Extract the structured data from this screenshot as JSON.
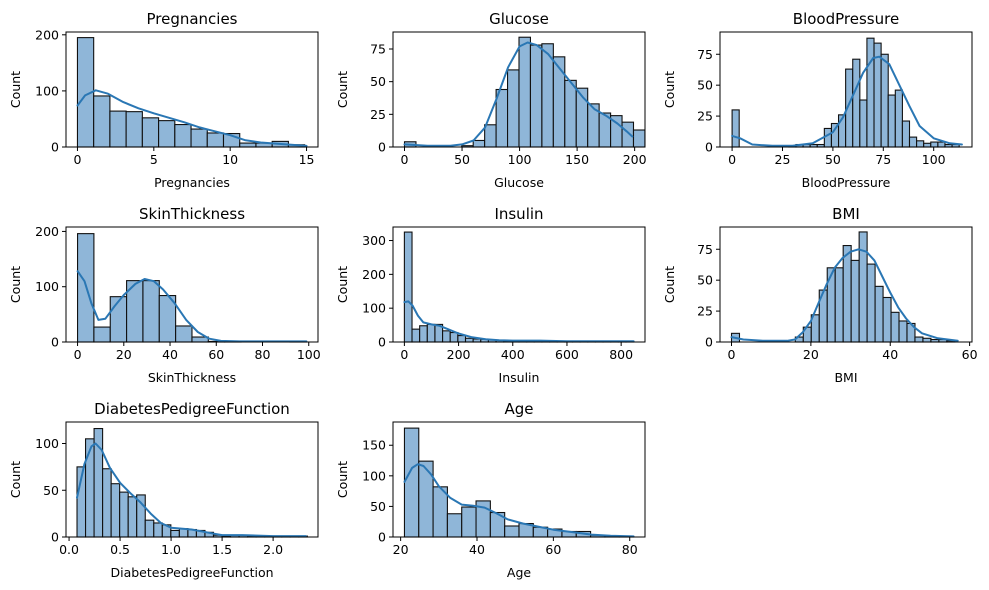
{
  "figure": {
    "layout": "3x3 grid of histograms with KDE",
    "bar_color": "#8fb6d8",
    "bar_edge": "#111111",
    "kde_color": "#2a77b4"
  },
  "chart_data": [
    {
      "type": "bar",
      "subtype": "histogram+kde",
      "title": "Pregnancies",
      "xlabel": "Pregnancies",
      "ylabel": "Count",
      "xlim": [
        -0.75,
        15.75
      ],
      "ylim": [
        0,
        205
      ],
      "xticks": [
        0,
        5,
        10,
        15
      ],
      "yticks": [
        0,
        100,
        200
      ],
      "bin_start": 0,
      "bin_width": 1.0625,
      "counts": [
        195,
        91,
        64,
        63,
        52,
        47,
        40,
        32,
        25,
        24,
        7,
        7,
        10,
        4
      ],
      "kde": [
        [
          0,
          74
        ],
        [
          0.5,
          92
        ],
        [
          1.2,
          101
        ],
        [
          2,
          95
        ],
        [
          3,
          80
        ],
        [
          4,
          69
        ],
        [
          5,
          60
        ],
        [
          6,
          52
        ],
        [
          7,
          44
        ],
        [
          8,
          35
        ],
        [
          9,
          28
        ],
        [
          10,
          21
        ],
        [
          11,
          12
        ],
        [
          12,
          8
        ],
        [
          13,
          6
        ],
        [
          14,
          4
        ],
        [
          15,
          2
        ]
      ]
    },
    {
      "type": "bar",
      "subtype": "histogram+kde",
      "title": "Glucose",
      "xlabel": "Glucose",
      "ylabel": "Count",
      "xlim": [
        -10,
        209
      ],
      "ylim": [
        0,
        88
      ],
      "xticks": [
        0,
        50,
        100,
        150,
        200
      ],
      "yticks": [
        0,
        25,
        50,
        75
      ],
      "bin_start": 0,
      "bin_width": 9.95,
      "counts": [
        4,
        0,
        0,
        0,
        0,
        1,
        5,
        17,
        44,
        59,
        84,
        78,
        79,
        69,
        51,
        45,
        33,
        26,
        24,
        19,
        13
      ],
      "kde": [
        [
          0,
          2
        ],
        [
          20,
          1
        ],
        [
          40,
          1
        ],
        [
          50,
          2
        ],
        [
          60,
          5
        ],
        [
          70,
          15
        ],
        [
          80,
          37
        ],
        [
          90,
          61
        ],
        [
          100,
          77
        ],
        [
          107,
          80
        ],
        [
          115,
          78
        ],
        [
          125,
          71
        ],
        [
          135,
          60
        ],
        [
          145,
          49
        ],
        [
          155,
          38
        ],
        [
          165,
          29
        ],
        [
          175,
          24
        ],
        [
          185,
          18
        ],
        [
          193,
          12
        ],
        [
          198,
          8
        ]
      ]
    },
    {
      "type": "bar",
      "subtype": "histogram+kde",
      "title": "BloodPressure",
      "xlabel": "BloodPressure",
      "ylabel": "Count",
      "xlim": [
        -6,
        119
      ],
      "ylim": [
        0,
        93
      ],
      "xticks": [
        0,
        25,
        50,
        75,
        100
      ],
      "yticks": [
        0,
        25,
        50,
        75
      ],
      "bin_start": 0,
      "bin_width": 3.52,
      "counts": [
        30,
        0,
        0,
        0,
        0,
        0,
        0,
        0,
        1,
        2,
        2,
        2,
        2,
        15,
        19,
        26,
        63,
        71,
        38,
        88,
        84,
        75,
        42,
        46,
        21,
        8,
        5,
        3,
        4,
        4,
        2,
        2
      ],
      "kde": [
        [
          0,
          9
        ],
        [
          4,
          7
        ],
        [
          10,
          2
        ],
        [
          20,
          1
        ],
        [
          30,
          1
        ],
        [
          40,
          3
        ],
        [
          50,
          12
        ],
        [
          55,
          24
        ],
        [
          60,
          42
        ],
        [
          65,
          60
        ],
        [
          70,
          72
        ],
        [
          73,
          73
        ],
        [
          78,
          67
        ],
        [
          83,
          50
        ],
        [
          88,
          33
        ],
        [
          93,
          17
        ],
        [
          100,
          7
        ],
        [
          108,
          3
        ],
        [
          114,
          2
        ]
      ]
    },
    {
      "type": "bar",
      "subtype": "histogram+kde",
      "title": "SkinThickness",
      "xlabel": "SkinThickness",
      "ylabel": "Count",
      "xlim": [
        -5,
        104
      ],
      "ylim": [
        0,
        208
      ],
      "xticks": [
        0,
        20,
        40,
        60,
        80,
        100
      ],
      "yticks": [
        0,
        100,
        200
      ],
      "bin_start": 0,
      "bin_width": 7.07,
      "counts": [
        196,
        27,
        82,
        111,
        111,
        84,
        29,
        9,
        1,
        1,
        0,
        0,
        0,
        1
      ],
      "kde": [
        [
          0,
          128
        ],
        [
          3,
          110
        ],
        [
          6,
          70
        ],
        [
          9,
          40
        ],
        [
          12,
          42
        ],
        [
          16,
          65
        ],
        [
          20,
          85
        ],
        [
          25,
          105
        ],
        [
          29,
          114
        ],
        [
          33,
          110
        ],
        [
          37,
          95
        ],
        [
          42,
          70
        ],
        [
          47,
          40
        ],
        [
          52,
          18
        ],
        [
          57,
          6
        ],
        [
          62,
          2
        ],
        [
          70,
          1
        ],
        [
          85,
          1
        ],
        [
          99,
          1
        ]
      ]
    },
    {
      "type": "bar",
      "subtype": "histogram+kde",
      "title": "Insulin",
      "xlabel": "Insulin",
      "ylabel": "Count",
      "xlim": [
        -42,
        888
      ],
      "ylim": [
        0,
        340
      ],
      "xticks": [
        0,
        200,
        400,
        600,
        800
      ],
      "yticks": [
        0,
        100,
        200,
        300
      ],
      "bin_start": 0,
      "bin_width": 28.2,
      "counts": [
        325,
        38,
        48,
        52,
        52,
        33,
        28,
        19,
        11,
        9,
        8,
        6,
        5,
        3,
        3,
        2,
        2,
        2,
        2,
        1,
        2,
        1,
        1,
        1,
        1,
        1,
        1,
        1,
        1,
        1
      ],
      "kde": [
        [
          0,
          118
        ],
        [
          15,
          120
        ],
        [
          30,
          108
        ],
        [
          50,
          78
        ],
        [
          70,
          58
        ],
        [
          100,
          52
        ],
        [
          130,
          48
        ],
        [
          160,
          38
        ],
        [
          200,
          25
        ],
        [
          250,
          14
        ],
        [
          300,
          8
        ],
        [
          350,
          5
        ],
        [
          400,
          4
        ],
        [
          500,
          4
        ],
        [
          600,
          2
        ],
        [
          700,
          2
        ],
        [
          846,
          2
        ]
      ]
    },
    {
      "type": "bar",
      "subtype": "histogram+kde",
      "title": "BMI",
      "xlabel": "BMI",
      "ylabel": "Count",
      "xlim": [
        -2.9,
        60.6
      ],
      "ylim": [
        0,
        93
      ],
      "xticks": [
        0,
        20,
        40,
        60
      ],
      "yticks": [
        0,
        25,
        50,
        75
      ],
      "bin_start": 0,
      "bin_width": 2.01,
      "counts": [
        7,
        0,
        0,
        0,
        0,
        0,
        0,
        0,
        4,
        12,
        22,
        42,
        60,
        60,
        78,
        66,
        89,
        63,
        45,
        36,
        24,
        17,
        15,
        4,
        3,
        2,
        2,
        1
      ],
      "kde": [
        [
          0,
          4
        ],
        [
          3,
          2
        ],
        [
          8,
          1
        ],
        [
          14,
          1
        ],
        [
          16,
          2
        ],
        [
          18,
          8
        ],
        [
          20,
          17
        ],
        [
          22,
          32
        ],
        [
          24,
          47
        ],
        [
          26,
          60
        ],
        [
          28,
          68
        ],
        [
          30,
          73
        ],
        [
          32,
          75
        ],
        [
          34,
          73
        ],
        [
          36,
          66
        ],
        [
          38,
          53
        ],
        [
          40,
          40
        ],
        [
          42,
          28
        ],
        [
          44,
          19
        ],
        [
          46,
          12
        ],
        [
          48,
          7
        ],
        [
          52,
          3
        ],
        [
          57,
          1
        ]
      ]
    },
    {
      "type": "bar",
      "subtype": "histogram+kde",
      "title": "DiabetesPedigreeFunction",
      "xlabel": "DiabetesPedigreeFunction",
      "ylabel": "Count",
      "xlim": [
        -0.03,
        2.44
      ],
      "ylim": [
        0,
        123
      ],
      "xticks": [
        0.0,
        0.5,
        1.0,
        1.5,
        2.0
      ],
      "yticks": [
        0,
        50,
        100
      ],
      "xtick_labels": [
        "0.0",
        "0.5",
        "1.0",
        "1.5",
        "2.0"
      ],
      "bin_start": 0.078,
      "bin_width": 0.0836,
      "counts": [
        75,
        105,
        116,
        73,
        57,
        48,
        43,
        45,
        18,
        15,
        13,
        7,
        9,
        8,
        7,
        5,
        2,
        1,
        2,
        2,
        1,
        1,
        1,
        1,
        1,
        1,
        1
      ],
      "kde": [
        [
          0.078,
          42
        ],
        [
          0.15,
          78
        ],
        [
          0.22,
          97
        ],
        [
          0.26,
          100
        ],
        [
          0.32,
          93
        ],
        [
          0.4,
          74
        ],
        [
          0.5,
          58
        ],
        [
          0.6,
          47
        ],
        [
          0.7,
          37
        ],
        [
          0.8,
          25
        ],
        [
          0.9,
          15
        ],
        [
          1.0,
          10
        ],
        [
          1.1,
          9
        ],
        [
          1.2,
          8
        ],
        [
          1.3,
          6
        ],
        [
          1.4,
          4
        ],
        [
          1.5,
          2
        ],
        [
          1.7,
          2
        ],
        [
          2.0,
          1
        ],
        [
          2.32,
          1
        ]
      ]
    },
    {
      "type": "bar",
      "subtype": "histogram+kde",
      "title": "Age",
      "xlabel": "Age",
      "ylabel": "Count",
      "xlim": [
        18,
        84
      ],
      "ylim": [
        0,
        188
      ],
      "xticks": [
        20,
        40,
        60,
        80
      ],
      "yticks": [
        0,
        50,
        100,
        150
      ],
      "bin_start": 21,
      "bin_width": 3.75,
      "counts": [
        178,
        124,
        82,
        38,
        49,
        59,
        40,
        18,
        22,
        16,
        13,
        9,
        9,
        3,
        1,
        1
      ],
      "kde": [
        [
          21,
          90
        ],
        [
          23,
          113
        ],
        [
          24.5,
          119
        ],
        [
          26,
          116
        ],
        [
          28,
          102
        ],
        [
          30,
          83
        ],
        [
          33,
          64
        ],
        [
          36,
          53
        ],
        [
          39,
          51
        ],
        [
          42,
          48
        ],
        [
          45,
          39
        ],
        [
          48,
          29
        ],
        [
          52,
          22
        ],
        [
          56,
          17
        ],
        [
          60,
          12
        ],
        [
          65,
          8
        ],
        [
          70,
          4
        ],
        [
          75,
          2
        ],
        [
          81,
          1
        ]
      ]
    }
  ]
}
